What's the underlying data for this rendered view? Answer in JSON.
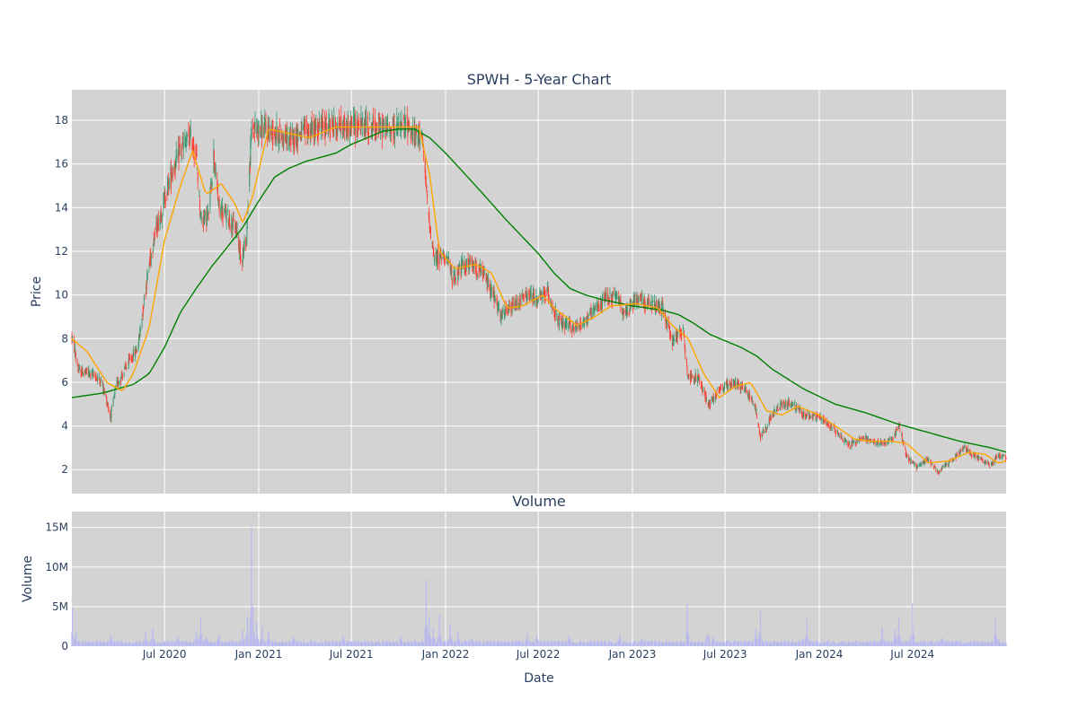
{
  "colors": {
    "plot_bg": "#d3d3d3",
    "grid": "#ffffff",
    "increasing": "#3d9970",
    "decreasing": "#ff4136",
    "ma_short": "#ffa500",
    "ma_long": "#008000",
    "volume": "#b9b9f0",
    "text": "#2a3f5f"
  },
  "chart_data": [
    {
      "type": "candlestick",
      "title": "SPWH - 5-Year Chart",
      "ylabel": "Price",
      "xlabel": "",
      "ylim": [
        0.9,
        19.4
      ],
      "yticks": [
        2,
        4,
        6,
        8,
        10,
        12,
        14,
        16,
        18
      ],
      "x_range": [
        "2020-01-02",
        "2024-12-31"
      ],
      "grid": true,
      "legend": "none",
      "price_anchors": [
        [
          "2020-01-02",
          8.1
        ],
        [
          "2020-01-06",
          7.7
        ],
        [
          "2020-01-15",
          6.5
        ],
        [
          "2020-02-10",
          6.4
        ],
        [
          "2020-03-01",
          6.0
        ],
        [
          "2020-03-18",
          4.4
        ],
        [
          "2020-03-28",
          5.8
        ],
        [
          "2020-04-15",
          6.6
        ],
        [
          "2020-05-10",
          7.6
        ],
        [
          "2020-05-28",
          10.8
        ],
        [
          "2020-06-10",
          12.6
        ],
        [
          "2020-06-28",
          14.1
        ],
        [
          "2020-07-15",
          15.6
        ],
        [
          "2020-08-02",
          16.7
        ],
        [
          "2020-08-20",
          17.2
        ],
        [
          "2020-09-01",
          16.4
        ],
        [
          "2020-09-10",
          13.5
        ],
        [
          "2020-09-25",
          13.6
        ],
        [
          "2020-10-05",
          16.5
        ],
        [
          "2020-10-15",
          14.0
        ],
        [
          "2020-11-01",
          13.6
        ],
        [
          "2020-11-20",
          12.9
        ],
        [
          "2020-11-28",
          11.6
        ],
        [
          "2020-12-08",
          12.6
        ],
        [
          "2020-12-18",
          17.6
        ],
        [
          "2021-01-10",
          17.6
        ],
        [
          "2021-02-10",
          17.4
        ],
        [
          "2021-03-01",
          17.1
        ],
        [
          "2021-03-20",
          17.4
        ],
        [
          "2021-04-20",
          17.6
        ],
        [
          "2021-05-20",
          17.8
        ],
        [
          "2021-06-20",
          17.7
        ],
        [
          "2021-07-20",
          17.8
        ],
        [
          "2021-08-20",
          17.7
        ],
        [
          "2021-09-20",
          17.6
        ],
        [
          "2021-10-20",
          17.8
        ],
        [
          "2021-11-01",
          17.2
        ],
        [
          "2021-11-15",
          17.5
        ],
        [
          "2021-11-27",
          14.0
        ],
        [
          "2021-12-10",
          11.6
        ],
        [
          "2022-01-01",
          11.9
        ],
        [
          "2022-01-15",
          10.7
        ],
        [
          "2022-02-01",
          11.3
        ],
        [
          "2022-02-20",
          11.4
        ],
        [
          "2022-03-15",
          11.0
        ],
        [
          "2022-04-01",
          10.2
        ],
        [
          "2022-04-20",
          9.0
        ],
        [
          "2022-05-20",
          9.6
        ],
        [
          "2022-06-10",
          10.0
        ],
        [
          "2022-07-01",
          9.8
        ],
        [
          "2022-07-20",
          10.1
        ],
        [
          "2022-08-10",
          8.7
        ],
        [
          "2022-09-10",
          8.5
        ],
        [
          "2022-10-10",
          9.0
        ],
        [
          "2022-11-10",
          9.9
        ],
        [
          "2022-12-01",
          9.9
        ],
        [
          "2022-12-20",
          9.1
        ],
        [
          "2023-01-10",
          9.9
        ],
        [
          "2023-02-10",
          9.5
        ],
        [
          "2023-03-01",
          9.4
        ],
        [
          "2023-03-20",
          7.9
        ],
        [
          "2023-04-10",
          8.4
        ],
        [
          "2023-04-20",
          6.2
        ],
        [
          "2023-05-10",
          6.2
        ],
        [
          "2023-05-30",
          5.0
        ],
        [
          "2023-06-20",
          5.7
        ],
        [
          "2023-07-20",
          6.0
        ],
        [
          "2023-08-10",
          5.7
        ],
        [
          "2023-08-30",
          4.8
        ],
        [
          "2023-09-08",
          3.5
        ],
        [
          "2023-10-01",
          4.5
        ],
        [
          "2023-10-20",
          5.0
        ],
        [
          "2023-11-10",
          5.0
        ],
        [
          "2023-12-01",
          4.5
        ],
        [
          "2024-01-01",
          4.4
        ],
        [
          "2024-02-01",
          3.8
        ],
        [
          "2024-03-01",
          3.1
        ],
        [
          "2024-03-25",
          3.5
        ],
        [
          "2024-04-20",
          3.2
        ],
        [
          "2024-05-20",
          3.3
        ],
        [
          "2024-06-05",
          4.0
        ],
        [
          "2024-06-20",
          2.6
        ],
        [
          "2024-07-10",
          2.1
        ],
        [
          "2024-08-01",
          2.5
        ],
        [
          "2024-08-20",
          1.9
        ],
        [
          "2024-09-15",
          2.4
        ],
        [
          "2024-10-10",
          3.0
        ],
        [
          "2024-11-01",
          2.6
        ],
        [
          "2024-12-01",
          2.2
        ],
        [
          "2024-12-15",
          2.7
        ],
        [
          "2024-12-31",
          2.5
        ]
      ],
      "ma_short_anchors": [
        [
          "2020-01-02",
          8.0
        ],
        [
          "2020-02-01",
          7.4
        ],
        [
          "2020-03-10",
          6.0
        ],
        [
          "2020-04-10",
          5.6
        ],
        [
          "2020-05-01",
          6.4
        ],
        [
          "2020-06-01",
          8.5
        ],
        [
          "2020-07-01",
          12.5
        ],
        [
          "2020-08-01",
          15.0
        ],
        [
          "2020-08-25",
          16.6
        ],
        [
          "2020-09-20",
          14.6
        ],
        [
          "2020-10-20",
          15.1
        ],
        [
          "2020-11-15",
          14.2
        ],
        [
          "2020-12-01",
          13.3
        ],
        [
          "2020-12-20",
          14.5
        ],
        [
          "2021-01-20",
          17.6
        ],
        [
          "2021-03-01",
          17.4
        ],
        [
          "2021-04-10",
          17.2
        ],
        [
          "2021-06-01",
          17.7
        ],
        [
          "2021-09-01",
          17.7
        ],
        [
          "2021-11-10",
          17.7
        ],
        [
          "2021-12-01",
          15.5
        ],
        [
          "2021-12-20",
          12.0
        ],
        [
          "2022-01-20",
          11.2
        ],
        [
          "2022-03-01",
          11.4
        ],
        [
          "2022-04-01",
          11.0
        ],
        [
          "2022-05-01",
          9.4
        ],
        [
          "2022-06-01",
          9.5
        ],
        [
          "2022-07-10",
          10.0
        ],
        [
          "2022-08-01",
          9.4
        ],
        [
          "2022-09-15",
          8.6
        ],
        [
          "2022-10-20",
          9.0
        ],
        [
          "2022-11-20",
          9.5
        ],
        [
          "2023-01-10",
          9.6
        ],
        [
          "2023-02-20",
          9.4
        ],
        [
          "2023-03-20",
          8.6
        ],
        [
          "2023-04-20",
          8.0
        ],
        [
          "2023-05-20",
          6.4
        ],
        [
          "2023-06-20",
          5.3
        ],
        [
          "2023-07-20",
          5.8
        ],
        [
          "2023-08-20",
          6.0
        ],
        [
          "2023-09-20",
          4.7
        ],
        [
          "2023-10-20",
          4.5
        ],
        [
          "2023-11-20",
          4.9
        ],
        [
          "2024-01-01",
          4.5
        ],
        [
          "2024-02-01",
          4.0
        ],
        [
          "2024-03-10",
          3.4
        ],
        [
          "2024-04-10",
          3.3
        ],
        [
          "2024-05-20",
          3.3
        ],
        [
          "2024-06-20",
          3.2
        ],
        [
          "2024-08-01",
          2.3
        ],
        [
          "2024-09-10",
          2.4
        ],
        [
          "2024-10-20",
          2.8
        ],
        [
          "2024-11-20",
          2.7
        ],
        [
          "2024-12-15",
          2.3
        ],
        [
          "2024-12-31",
          2.4
        ]
      ],
      "ma_long_anchors": [
        [
          "2020-01-02",
          5.3
        ],
        [
          "2020-03-01",
          5.5
        ],
        [
          "2020-05-01",
          5.9
        ],
        [
          "2020-06-01",
          6.4
        ],
        [
          "2020-07-01",
          7.6
        ],
        [
          "2020-08-01",
          9.2
        ],
        [
          "2020-09-01",
          10.3
        ],
        [
          "2020-10-01",
          11.3
        ],
        [
          "2020-11-01",
          12.2
        ],
        [
          "2020-12-01",
          13.1
        ],
        [
          "2021-01-01",
          14.3
        ],
        [
          "2021-02-01",
          15.4
        ],
        [
          "2021-03-01",
          15.8
        ],
        [
          "2021-04-01",
          16.1
        ],
        [
          "2021-05-01",
          16.3
        ],
        [
          "2021-06-01",
          16.5
        ],
        [
          "2021-07-01",
          16.9
        ],
        [
          "2021-08-01",
          17.2
        ],
        [
          "2021-09-01",
          17.5
        ],
        [
          "2021-10-01",
          17.6
        ],
        [
          "2021-11-01",
          17.6
        ],
        [
          "2021-12-01",
          17.2
        ],
        [
          "2022-01-01",
          16.5
        ],
        [
          "2022-03-01",
          15.0
        ],
        [
          "2022-05-01",
          13.4
        ],
        [
          "2022-07-01",
          11.9
        ],
        [
          "2022-08-01",
          11.0
        ],
        [
          "2022-09-01",
          10.3
        ],
        [
          "2022-10-01",
          10.0
        ],
        [
          "2022-11-01",
          9.8
        ],
        [
          "2023-01-01",
          9.5
        ],
        [
          "2023-03-01",
          9.3
        ],
        [
          "2023-04-01",
          9.1
        ],
        [
          "2023-05-01",
          8.7
        ],
        [
          "2023-06-01",
          8.2
        ],
        [
          "2023-07-01",
          7.9
        ],
        [
          "2023-08-01",
          7.6
        ],
        [
          "2023-09-01",
          7.2
        ],
        [
          "2023-10-01",
          6.6
        ],
        [
          "2023-12-01",
          5.7
        ],
        [
          "2024-02-01",
          5.0
        ],
        [
          "2024-04-01",
          4.6
        ],
        [
          "2024-06-01",
          4.1
        ],
        [
          "2024-08-01",
          3.7
        ],
        [
          "2024-10-01",
          3.3
        ],
        [
          "2024-12-01",
          3.0
        ],
        [
          "2024-12-31",
          2.8
        ]
      ]
    },
    {
      "type": "bar",
      "title": "Volume",
      "ylabel": "Volume",
      "xlabel": "Date",
      "ylim": [
        0,
        17000000
      ],
      "yticks": [
        {
          "value": 0,
          "label": "0"
        },
        {
          "value": 5000000,
          "label": "5M"
        },
        {
          "value": 10000000,
          "label": "10M"
        },
        {
          "value": 15000000,
          "label": "15M"
        }
      ],
      "xticks": [
        {
          "date": "2020-07-01",
          "label": "Jul 2020"
        },
        {
          "date": "2021-01-01",
          "label": "Jan 2021"
        },
        {
          "date": "2021-07-01",
          "label": "Jul 2021"
        },
        {
          "date": "2022-01-01",
          "label": "Jan 2022"
        },
        {
          "date": "2022-07-01",
          "label": "Jul 2022"
        },
        {
          "date": "2023-01-01",
          "label": "Jan 2023"
        },
        {
          "date": "2023-07-01",
          "label": "Jul 2023"
        },
        {
          "date": "2024-01-01",
          "label": "Jan 2024"
        },
        {
          "date": "2024-07-01",
          "label": "Jul 2024"
        }
      ],
      "base_volume": 500000,
      "volume_spikes": [
        [
          "2020-01-03",
          4800000
        ],
        [
          "2020-01-10",
          2000000
        ],
        [
          "2020-03-18",
          1500000
        ],
        [
          "2020-05-25",
          1900000
        ],
        [
          "2020-06-08",
          2300000
        ],
        [
          "2020-07-27",
          1200000
        ],
        [
          "2020-09-01",
          2000000
        ],
        [
          "2020-09-10",
          3800000
        ],
        [
          "2020-09-20",
          2200000
        ],
        [
          "2020-10-15",
          1500000
        ],
        [
          "2020-11-30",
          2100000
        ],
        [
          "2020-12-10",
          3800000
        ],
        [
          "2020-12-18",
          15000000
        ],
        [
          "2020-12-21",
          5000000
        ],
        [
          "2020-12-28",
          3000000
        ],
        [
          "2021-01-08",
          2500000
        ],
        [
          "2021-01-20",
          1800000
        ],
        [
          "2021-03-10",
          1200000
        ],
        [
          "2021-06-15",
          1400000
        ],
        [
          "2021-10-05",
          1300000
        ],
        [
          "2021-11-24",
          8400000
        ],
        [
          "2021-11-30",
          3600000
        ],
        [
          "2021-12-08",
          2200000
        ],
        [
          "2021-12-20",
          3900000
        ],
        [
          "2022-01-10",
          2700000
        ],
        [
          "2022-01-25",
          2000000
        ],
        [
          "2022-02-20",
          1200000
        ],
        [
          "2022-06-10",
          1600000
        ],
        [
          "2022-06-28",
          1500000
        ],
        [
          "2022-08-30",
          1400000
        ],
        [
          "2022-12-08",
          1500000
        ],
        [
          "2023-01-20",
          1000000
        ],
        [
          "2023-04-18",
          5300000
        ],
        [
          "2023-05-28",
          3800000
        ],
        [
          "2023-06-08",
          1200000
        ],
        [
          "2023-08-30",
          2200000
        ],
        [
          "2023-09-08",
          4500000
        ],
        [
          "2023-12-01",
          1100000
        ],
        [
          "2023-12-08",
          3400000
        ],
        [
          "2024-05-03",
          2400000
        ],
        [
          "2024-05-28",
          2100000
        ],
        [
          "2024-06-04",
          3600000
        ],
        [
          "2024-07-01",
          5400000
        ],
        [
          "2024-08-28",
          1100000
        ],
        [
          "2024-12-10",
          3600000
        ],
        [
          "2024-12-15",
          1200000
        ]
      ]
    }
  ]
}
